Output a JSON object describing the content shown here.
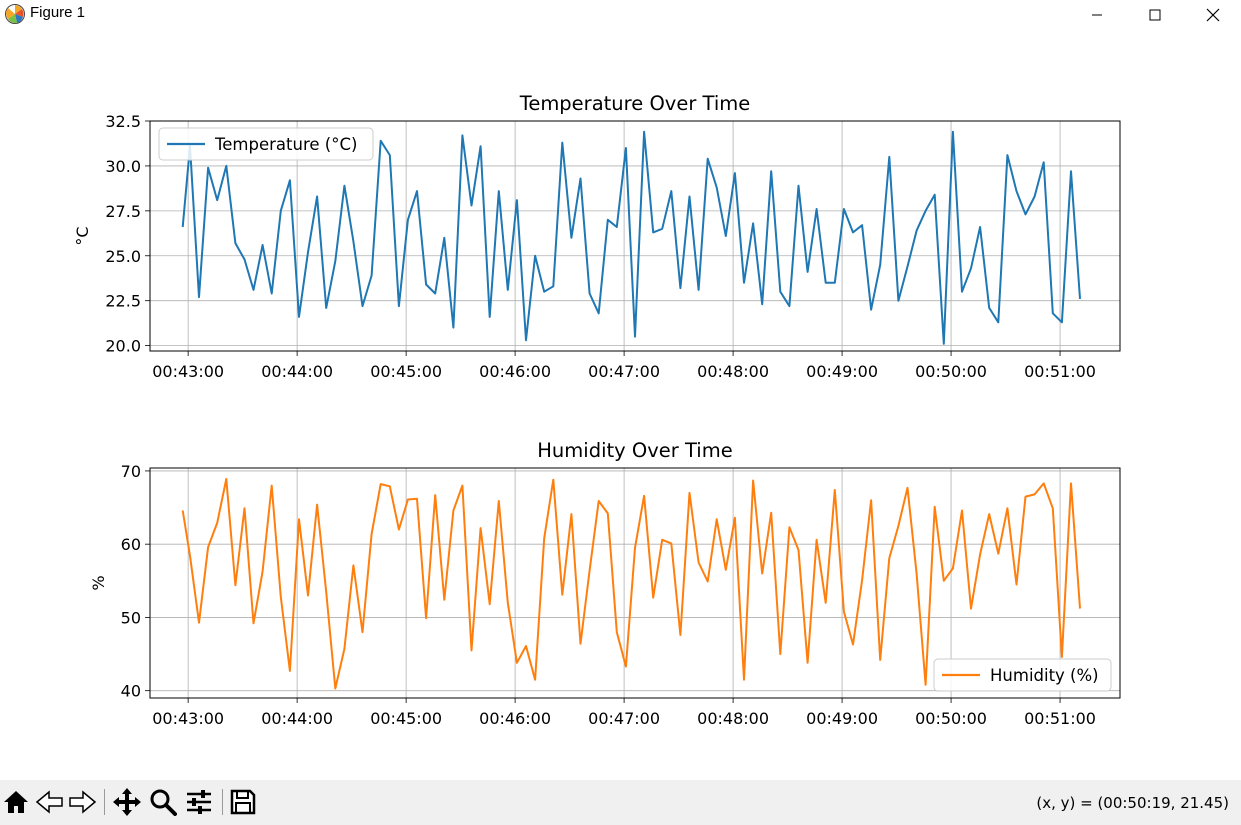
{
  "window": {
    "title": "Figure 1",
    "icon": "matplotlib-logo-icon",
    "controls": [
      "minimize-icon",
      "maximize-icon",
      "close-icon"
    ]
  },
  "toolbar": {
    "tools": [
      "home-icon",
      "back-arrow-icon",
      "forward-arrow-icon",
      "pan-move-icon",
      "zoom-magnifier-icon",
      "configure-subplots-icon",
      "save-floppy-icon"
    ],
    "coords": "(x, y) = (00:50:19, 21.45)"
  },
  "colors": {
    "temperature": "#1f77b4",
    "humidity": "#ff7f0e",
    "grid": "#b0b0b0"
  },
  "chart_data": [
    {
      "type": "line",
      "title": "Temperature Over Time",
      "xlabel": "",
      "ylabel": "°C",
      "x_unit": "time (HH:MM:SS)",
      "xlim": [
        "00:42:39",
        "00:51:33"
      ],
      "ylim": [
        19.7,
        32.5
      ],
      "yticks": [
        20.0,
        22.5,
        25.0,
        27.5,
        30.0,
        32.5
      ],
      "ytick_labels": [
        "20.0",
        "22.5",
        "25.0",
        "27.5",
        "30.0",
        "32.5"
      ],
      "xtick_labels": [
        "00:43:00",
        "00:44:00",
        "00:45:00",
        "00:46:00",
        "00:47:00",
        "00:48:00",
        "00:49:00",
        "00:50:00",
        "00:51:00"
      ],
      "grid": true,
      "legend_position": "upper left",
      "series": [
        {
          "name": "Temperature (°C)",
          "color": "#1f77b4",
          "x": [
            "00:42:57",
            "00:43:01",
            "00:43:06",
            "00:43:11",
            "00:43:16",
            "00:43:21",
            "00:43:26",
            "00:43:31",
            "00:43:36",
            "00:43:41",
            "00:43:46",
            "00:43:51",
            "00:43:56",
            "00:44:01",
            "00:44:06",
            "00:44:11",
            "00:44:16",
            "00:44:21",
            "00:44:26",
            "00:44:31",
            "00:44:36",
            "00:44:41",
            "00:44:46",
            "00:44:51",
            "00:44:56",
            "00:45:01",
            "00:45:06",
            "00:45:11",
            "00:45:16",
            "00:45:21",
            "00:45:26",
            "00:45:31",
            "00:45:36",
            "00:45:41",
            "00:45:46",
            "00:45:51",
            "00:45:56",
            "00:46:01",
            "00:46:06",
            "00:46:11",
            "00:46:16",
            "00:46:21",
            "00:46:26",
            "00:46:31",
            "00:46:36",
            "00:46:41",
            "00:46:46",
            "00:46:51",
            "00:46:56",
            "00:47:01",
            "00:47:06",
            "00:47:11",
            "00:47:16",
            "00:47:21",
            "00:47:26",
            "00:47:31",
            "00:47:36",
            "00:47:41",
            "00:47:46",
            "00:47:51",
            "00:47:56",
            "00:48:01",
            "00:48:06",
            "00:48:11",
            "00:48:16",
            "00:48:21",
            "00:48:26",
            "00:48:31",
            "00:48:36",
            "00:48:41",
            "00:48:46",
            "00:48:51",
            "00:48:56",
            "00:49:01",
            "00:49:06",
            "00:49:11",
            "00:49:16",
            "00:49:21",
            "00:49:26",
            "00:49:31",
            "00:49:36",
            "00:49:41",
            "00:49:46",
            "00:49:51",
            "00:49:56",
            "00:50:01",
            "00:50:06",
            "00:50:11",
            "00:50:16",
            "00:50:21",
            "00:50:26",
            "00:50:31",
            "00:50:36",
            "00:50:41",
            "00:50:46",
            "00:50:51",
            "00:50:56",
            "00:51:01",
            "00:51:06",
            "00:51:11"
          ],
          "y": [
            26.6,
            31.1,
            22.7,
            29.9,
            28.1,
            30.0,
            25.7,
            24.8,
            23.1,
            25.6,
            22.9,
            27.5,
            29.2,
            21.6,
            25.2,
            28.3,
            22.1,
            24.7,
            28.9,
            25.8,
            22.2,
            23.9,
            31.4,
            30.6,
            22.2,
            27.0,
            28.6,
            23.4,
            22.9,
            26.0,
            21.0,
            31.7,
            27.8,
            31.1,
            21.6,
            28.6,
            23.1,
            28.1,
            20.3,
            25.0,
            23.0,
            23.3,
            31.3,
            26.0,
            29.3,
            22.9,
            21.8,
            27.0,
            26.6,
            31.0,
            20.5,
            31.9,
            26.3,
            26.5,
            28.6,
            23.2,
            28.3,
            23.1,
            30.4,
            28.8,
            26.1,
            29.6,
            23.5,
            26.8,
            22.3,
            29.7,
            23.0,
            22.2,
            28.9,
            24.1,
            27.6,
            23.5,
            23.5,
            27.6,
            26.3,
            26.7,
            22.0,
            24.5,
            30.5,
            22.5,
            24.4,
            26.4,
            27.5,
            28.4,
            20.1,
            31.9,
            23.0,
            24.3,
            26.6,
            22.1,
            21.3,
            30.6,
            28.6,
            27.3,
            28.3,
            30.2,
            21.8,
            21.3,
            29.7,
            22.6
          ]
        }
      ]
    },
    {
      "type": "line",
      "title": "Humidity Over Time",
      "xlabel": "",
      "ylabel": "%",
      "x_unit": "time (HH:MM:SS)",
      "xlim": [
        "00:42:39",
        "00:51:33"
      ],
      "ylim": [
        39,
        70.4
      ],
      "yticks": [
        40,
        50,
        60,
        70
      ],
      "ytick_labels": [
        "40",
        "50",
        "60",
        "70"
      ],
      "xtick_labels": [
        "00:43:00",
        "00:44:00",
        "00:45:00",
        "00:46:00",
        "00:47:00",
        "00:48:00",
        "00:49:00",
        "00:50:00",
        "00:51:00"
      ],
      "grid": true,
      "legend_position": "lower right",
      "series": [
        {
          "name": "Humidity (%)",
          "color": "#ff7f0e",
          "x": [
            "00:42:57",
            "00:43:01",
            "00:43:06",
            "00:43:11",
            "00:43:16",
            "00:43:21",
            "00:43:26",
            "00:43:31",
            "00:43:36",
            "00:43:41",
            "00:43:46",
            "00:43:51",
            "00:43:56",
            "00:44:01",
            "00:44:06",
            "00:44:11",
            "00:44:16",
            "00:44:21",
            "00:44:26",
            "00:44:31",
            "00:44:36",
            "00:44:41",
            "00:44:46",
            "00:44:51",
            "00:44:56",
            "00:45:01",
            "00:45:06",
            "00:45:11",
            "00:45:16",
            "00:45:21",
            "00:45:26",
            "00:45:31",
            "00:45:36",
            "00:45:41",
            "00:45:46",
            "00:45:51",
            "00:45:56",
            "00:46:01",
            "00:46:06",
            "00:46:11",
            "00:46:16",
            "00:46:21",
            "00:46:26",
            "00:46:31",
            "00:46:36",
            "00:46:41",
            "00:46:46",
            "00:46:51",
            "00:46:56",
            "00:47:01",
            "00:47:06",
            "00:47:11",
            "00:47:16",
            "00:47:21",
            "00:47:26",
            "00:47:31",
            "00:47:36",
            "00:47:41",
            "00:47:46",
            "00:47:51",
            "00:47:56",
            "00:48:01",
            "00:48:06",
            "00:48:11",
            "00:48:16",
            "00:48:21",
            "00:48:26",
            "00:48:31",
            "00:48:36",
            "00:48:41",
            "00:48:46",
            "00:48:51",
            "00:48:56",
            "00:49:01",
            "00:49:06",
            "00:49:11",
            "00:49:16",
            "00:49:21",
            "00:49:26",
            "00:49:31",
            "00:49:36",
            "00:49:41",
            "00:49:46",
            "00:49:51",
            "00:49:56",
            "00:50:01",
            "00:50:06",
            "00:50:11",
            "00:50:16",
            "00:50:21",
            "00:50:26",
            "00:50:31",
            "00:50:36",
            "00:50:41",
            "00:50:46",
            "00:50:51",
            "00:50:56",
            "00:51:01",
            "00:51:06",
            "00:51:11"
          ],
          "y": [
            64.6,
            58.4,
            49.3,
            59.6,
            62.9,
            68.9,
            54.4,
            64.9,
            49.2,
            56.3,
            68.0,
            52.8,
            42.7,
            63.4,
            53.0,
            65.4,
            53.5,
            40.3,
            45.7,
            57.1,
            48.0,
            61.4,
            68.2,
            67.9,
            62.0,
            66.1,
            66.2,
            49.9,
            66.7,
            52.4,
            64.6,
            68.0,
            45.5,
            62.2,
            51.8,
            65.9,
            52.0,
            43.8,
            46.1,
            41.5,
            60.8,
            68.8,
            53.1,
            64.1,
            46.4,
            56.4,
            65.9,
            64.2,
            48.0,
            43.3,
            59.5,
            66.6,
            52.7,
            60.6,
            60.1,
            47.6,
            67.0,
            57.5,
            54.9,
            63.4,
            56.5,
            63.6,
            41.5,
            68.7,
            56.0,
            64.3,
            45.0,
            62.3,
            59.2,
            43.8,
            60.6,
            52.0,
            67.4,
            50.8,
            46.3,
            55.1,
            66.0,
            44.2,
            58.1,
            62.5,
            67.7,
            56.0,
            40.8,
            65.1,
            55.0,
            56.7,
            64.6,
            51.2,
            58.6,
            64.1,
            58.7,
            64.9,
            54.5,
            66.5,
            66.8,
            68.3,
            64.9,
            44.6,
            68.3,
            51.2
          ]
        }
      ]
    }
  ]
}
